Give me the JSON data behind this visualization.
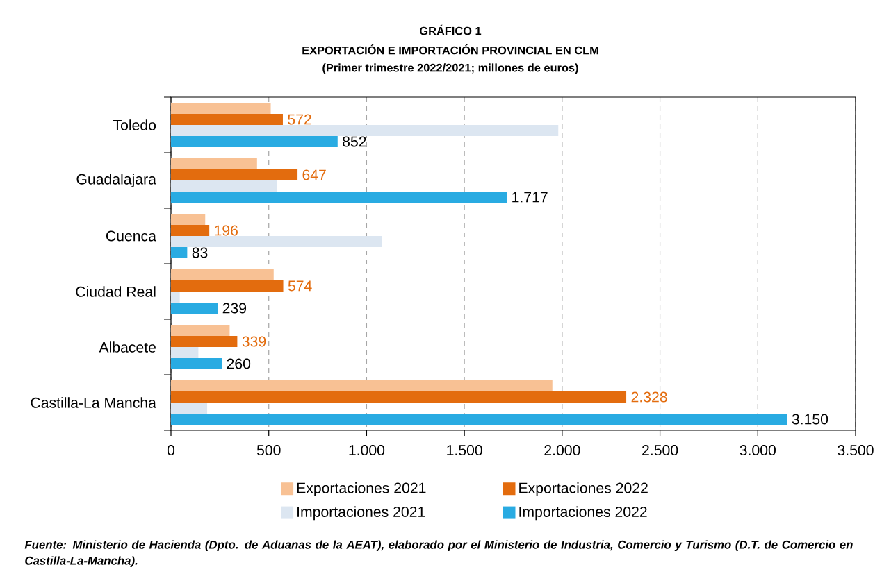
{
  "chart_data": {
    "type": "bar",
    "orientation": "horizontal",
    "title": "EXPORTACIÓN E IMPORTACIÓN PROVINCIAL EN CLM",
    "subtitle": "(Primer trimestre 2022/2021; millones de euros)",
    "annotations": [
      "GRÁFICO 1",
      "Fuente: Ministerio de Hacienda (Dpto. de Aduanas de la AEAT), elaborado por el Ministerio de Industria, Comercio y Turismo (D.T. de Comercio en Castilla-La-Mancha)."
    ],
    "categories": [
      "Toledo",
      "Guadalajara",
      "Cuenca",
      "Ciudad Real",
      "Albacete",
      "Castilla-La Mancha"
    ],
    "series": [
      {
        "name": "Exportaciones 2021",
        "color": "#f8c194",
        "values": [
          510,
          440,
          175,
          525,
          300,
          1950
        ]
      },
      {
        "name": "Exportaciones 2022",
        "color": "#e36c0e",
        "values": [
          572,
          647,
          196,
          574,
          339,
          2328
        ],
        "value_labels": [
          "572",
          "647",
          "196",
          "574",
          "339",
          "2.328"
        ]
      },
      {
        "name": "Importaciones 2021",
        "color": "#dce6f1",
        "values": [
          1980,
          540,
          1080,
          45,
          140,
          185
        ]
      },
      {
        "name": "Importaciones 2022",
        "color": "#29abe2",
        "values": [
          852,
          1717,
          83,
          239,
          260,
          3150
        ],
        "value_labels": [
          "852",
          "1.717",
          "83",
          "239",
          "260",
          "3.150"
        ]
      }
    ],
    "xlim": [
      0,
      3500
    ],
    "xticks": [
      0,
      500,
      {
        "value": 1000,
        "label": "1.000"
      },
      {
        "value": 1500,
        "label": "1.500"
      },
      {
        "value": 2000,
        "label": "2.000"
      },
      {
        "value": 2500,
        "label": "2.500"
      },
      {
        "value": 3000,
        "label": "3.000"
      },
      {
        "value": 3500,
        "label": "3.500"
      }
    ],
    "grid": "x",
    "legend": "bottom"
  }
}
